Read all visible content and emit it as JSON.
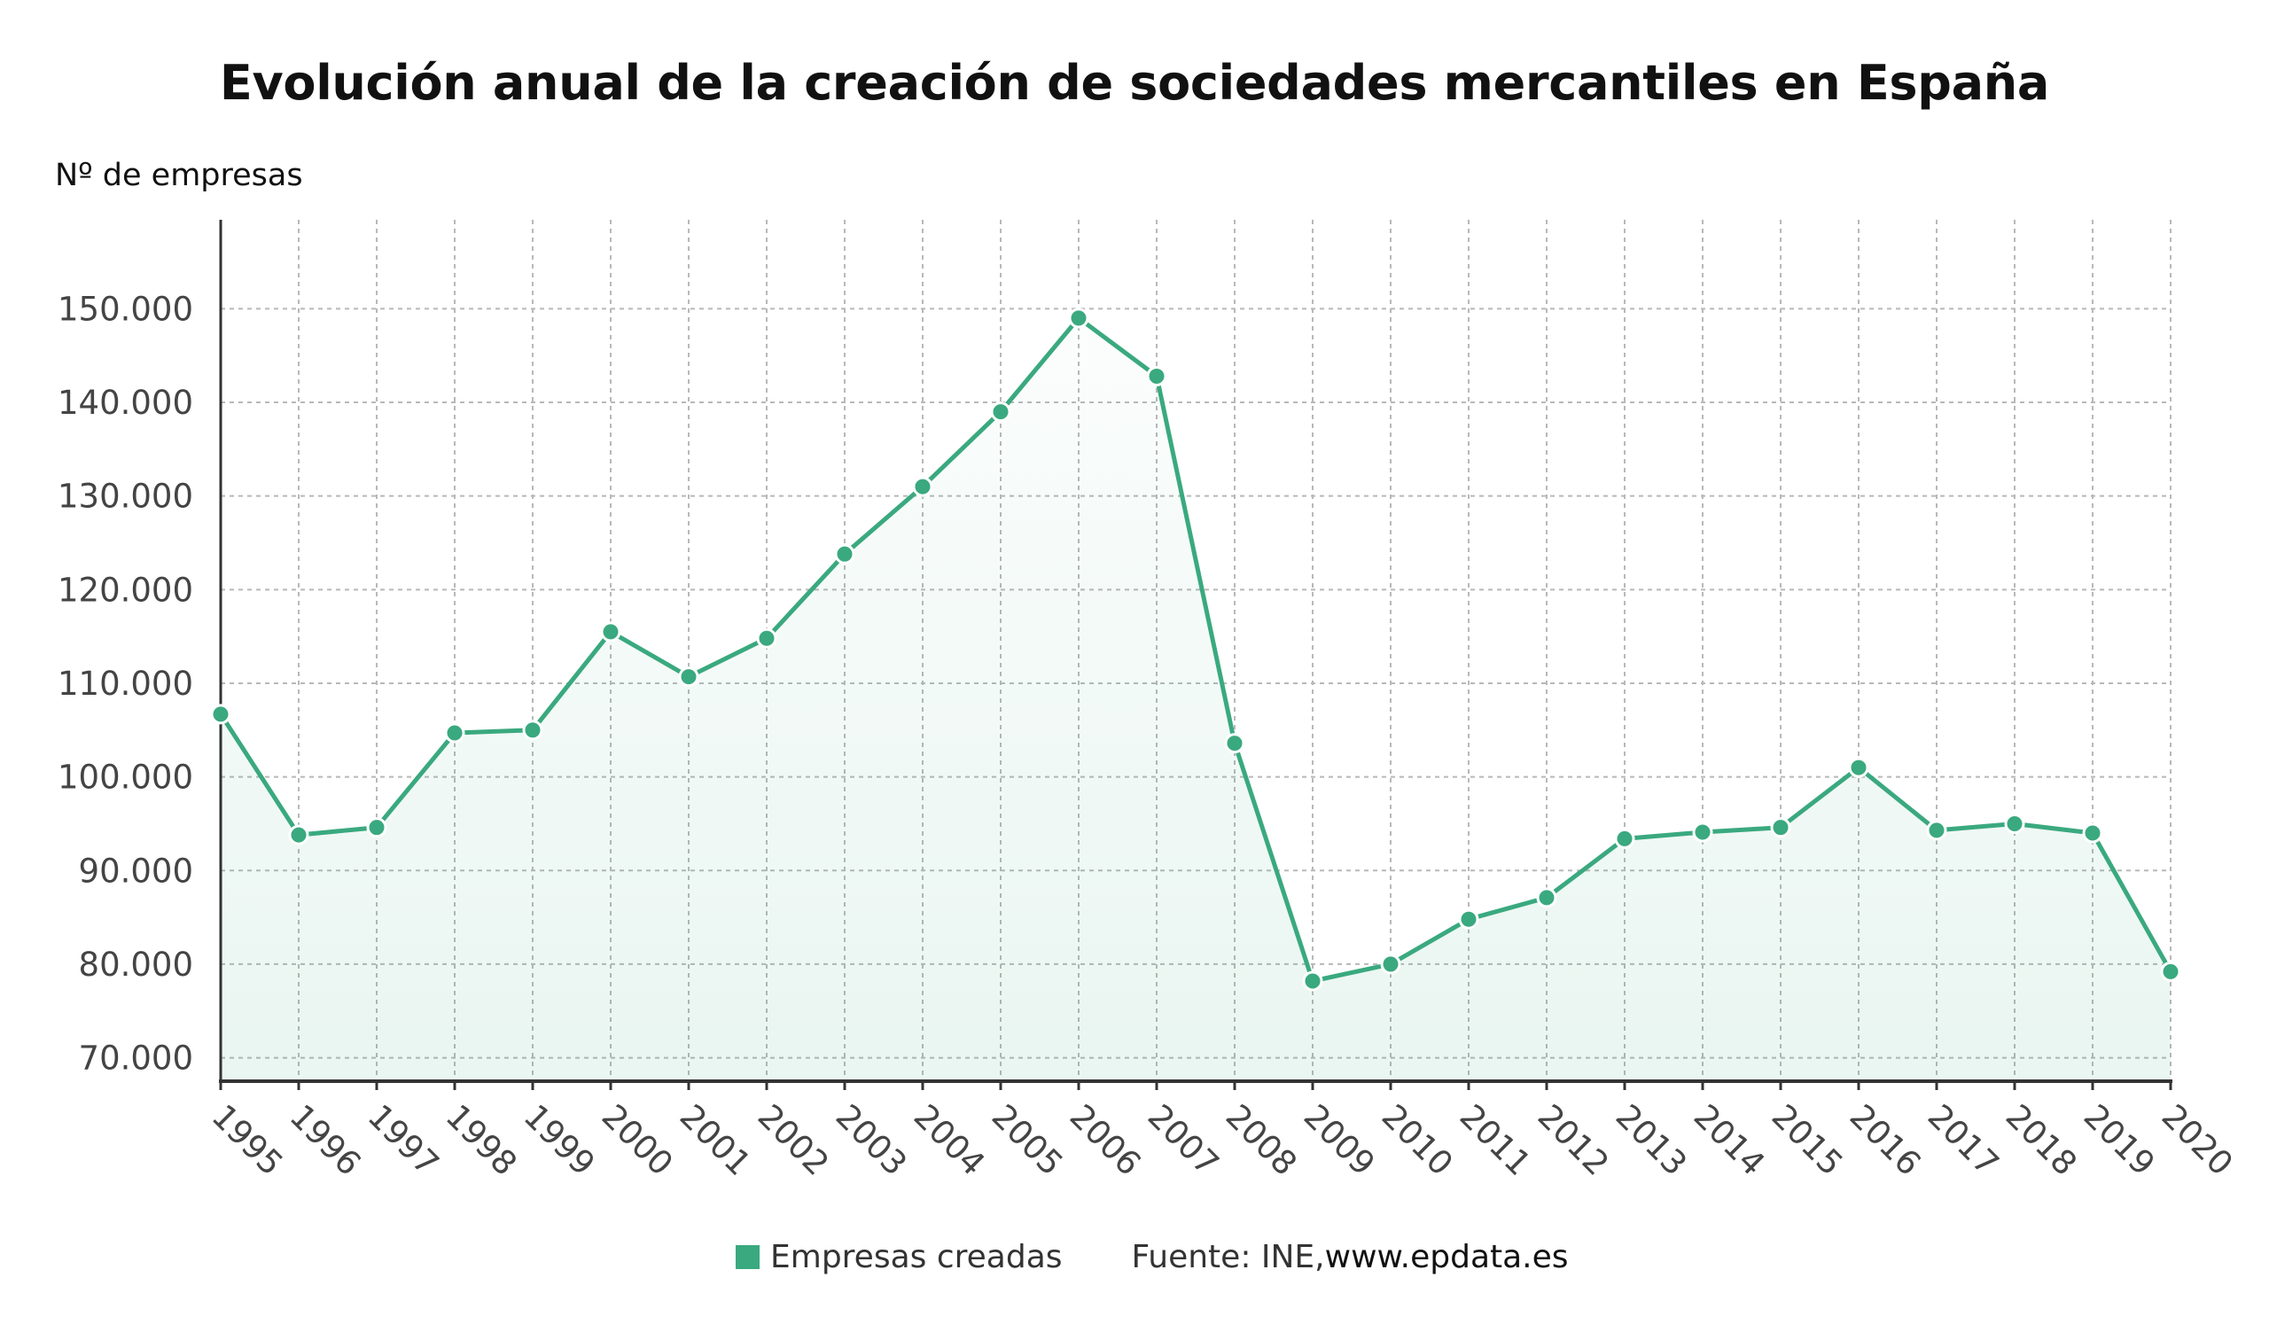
{
  "chart_data": {
    "type": "area",
    "title": "Evolución anual de la creación de sociedades mercantiles en España",
    "ylabel": "Nº de empresas",
    "xlabel": "",
    "ylim": [
      67500,
      159500
    ],
    "yticks": [
      70000,
      80000,
      90000,
      100000,
      110000,
      120000,
      130000,
      140000,
      150000
    ],
    "ytick_labels": [
      "70.000",
      "80.000",
      "90.000",
      "100.000",
      "110.000",
      "120.000",
      "130.000",
      "140.000",
      "150.000"
    ],
    "categories": [
      "1995",
      "1996",
      "1997",
      "1998",
      "1999",
      "2000",
      "2001",
      "2002",
      "2003",
      "2004",
      "2005",
      "2006",
      "2007",
      "2008",
      "2009",
      "2010",
      "2011",
      "2012",
      "2013",
      "2014",
      "2015",
      "2016",
      "2017",
      "2018",
      "2019",
      "2020"
    ],
    "series": [
      {
        "name": "Empresas creadas",
        "color": "#3aa97f",
        "values": [
          106700,
          93800,
          94600,
          104700,
          105000,
          115500,
          110700,
          114800,
          123800,
          131000,
          139000,
          149000,
          142800,
          103600,
          78200,
          80000,
          84800,
          87100,
          93400,
          94100,
          94600,
          101000,
          94300,
          95000,
          94000,
          79200
        ]
      }
    ],
    "grid": true,
    "legend": "bottom"
  },
  "source": {
    "prefix": "Fuente: INE, ",
    "site": "www.epdata.es"
  }
}
